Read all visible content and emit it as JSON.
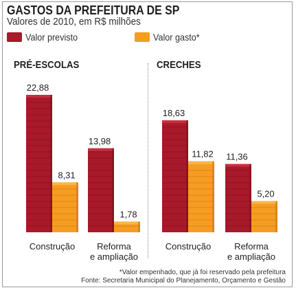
{
  "title": "GASTOS DA PREFEITURA DE SP",
  "subtitle": "Valores de 2010, em R$ milhões",
  "legend": [
    {
      "label": "Valor previsto",
      "color": "#a8192a"
    },
    {
      "label": "Valor gasto*",
      "color": "#f59d22"
    }
  ],
  "footnote": "*Valor empenhado, que já foi reservado pela prefeitura",
  "source": "Fonte: Secretaria Municipal do Planejamento, Orçamento e Gestão",
  "chart_data": [
    {
      "type": "bar",
      "title": "PRÉ-ESCOLAS",
      "categories": [
        "Construção",
        "Reforma\ne ampliação"
      ],
      "series": [
        {
          "name": "Valor previsto",
          "values": [
            22.88,
            13.98
          ],
          "labels": [
            "22,88",
            "13,98"
          ],
          "color": "#a8192a"
        },
        {
          "name": "Valor gasto*",
          "values": [
            8.31,
            1.78
          ],
          "labels": [
            "8,31",
            "1,78"
          ],
          "color": "#f59d22"
        }
      ],
      "ylim": [
        0,
        24
      ]
    },
    {
      "type": "bar",
      "title": "CRECHES",
      "categories": [
        "Construção",
        "Reforma\ne ampliação"
      ],
      "series": [
        {
          "name": "Valor previsto",
          "values": [
            18.63,
            11.36
          ],
          "labels": [
            "18,63",
            "11,36"
          ],
          "color": "#a8192a"
        },
        {
          "name": "Valor gasto*",
          "values": [
            11.82,
            5.2
          ],
          "labels": [
            "11,82",
            "5,20"
          ],
          "color": "#f59d22"
        }
      ],
      "ylim": [
        0,
        24
      ]
    }
  ]
}
